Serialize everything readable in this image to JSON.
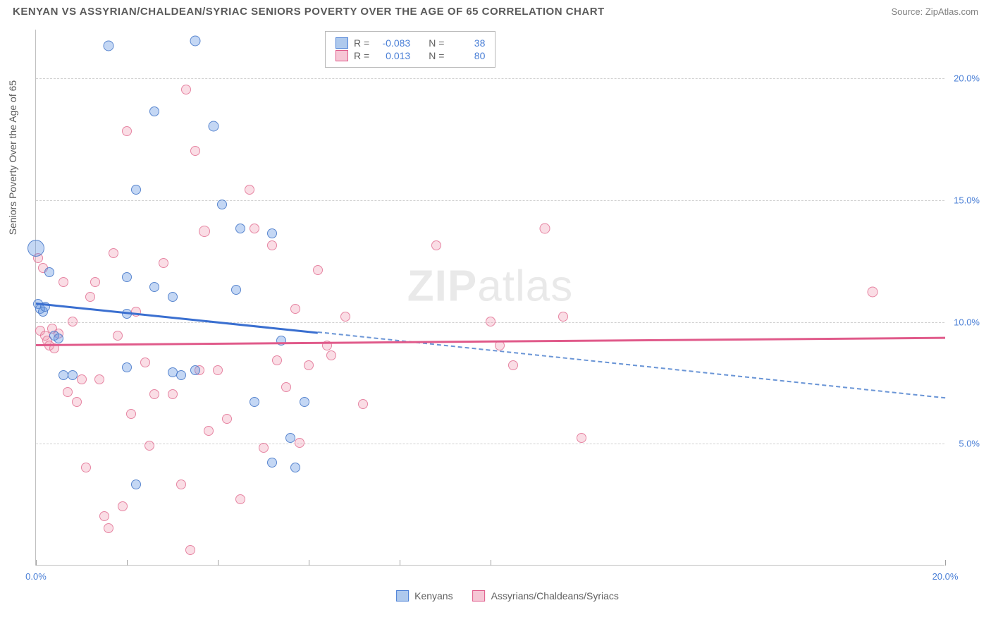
{
  "header": {
    "title": "KENYAN VS ASSYRIAN/CHALDEAN/SYRIAC SENIORS POVERTY OVER THE AGE OF 65 CORRELATION CHART",
    "source": "Source: ZipAtlas.com"
  },
  "chart": {
    "type": "scatter",
    "axis_title_y": "Seniors Poverty Over the Age of 65",
    "xlim": [
      0,
      20
    ],
    "ylim": [
      0,
      22
    ],
    "x_ticks": [
      0,
      2,
      4,
      6,
      8,
      10,
      20
    ],
    "x_tick_labels": {
      "0": "0.0%",
      "20": "20.0%"
    },
    "y_grid": [
      5,
      10,
      15,
      20
    ],
    "y_tick_labels": {
      "5": "5.0%",
      "10": "10.0%",
      "15": "15.0%",
      "20": "20.0%"
    },
    "background_color": "#ffffff",
    "grid_color": "#d0d0d0",
    "watermark": "ZIPatlas",
    "series": {
      "blue": {
        "label": "Kenyans",
        "fill": "rgba(100,150,225,0.38)",
        "stroke": "rgba(70,120,200,0.85)",
        "R": "-0.083",
        "N": "38",
        "reg_line": {
          "x1": 0,
          "y1": 10.8,
          "x2": 6.2,
          "y2": 9.6,
          "x3": 20,
          "y3": 6.9
        },
        "points": [
          [
            0.0,
            13.0,
            20
          ],
          [
            0.05,
            10.7,
            10
          ],
          [
            0.1,
            10.5,
            10
          ],
          [
            0.15,
            10.4,
            10
          ],
          [
            0.2,
            10.6,
            10
          ],
          [
            0.3,
            12.0,
            10
          ],
          [
            0.4,
            9.4,
            10
          ],
          [
            0.5,
            9.3,
            10
          ],
          [
            0.6,
            7.8,
            10
          ],
          [
            0.8,
            7.8,
            10
          ],
          [
            1.6,
            21.3,
            11
          ],
          [
            2.0,
            11.8,
            10
          ],
          [
            2.0,
            10.3,
            10
          ],
          [
            2.0,
            8.1,
            10
          ],
          [
            2.2,
            15.4,
            10
          ],
          [
            2.2,
            3.3,
            10
          ],
          [
            2.6,
            18.6,
            10
          ],
          [
            2.6,
            11.4,
            10
          ],
          [
            3.0,
            11.0,
            10
          ],
          [
            3.0,
            7.9,
            10
          ],
          [
            3.2,
            7.8,
            10
          ],
          [
            3.5,
            8.0,
            10
          ],
          [
            3.5,
            21.5,
            11
          ],
          [
            3.9,
            18.0,
            11
          ],
          [
            4.1,
            14.8,
            10
          ],
          [
            4.4,
            11.3,
            10
          ],
          [
            4.5,
            13.8,
            10
          ],
          [
            4.8,
            6.7,
            10
          ],
          [
            5.2,
            13.6,
            10
          ],
          [
            5.2,
            4.2,
            10
          ],
          [
            5.4,
            9.2,
            10
          ],
          [
            5.6,
            5.2,
            10
          ],
          [
            5.7,
            4.0,
            10
          ],
          [
            5.9,
            6.7,
            10
          ]
        ]
      },
      "pink": {
        "label": "Assyrians/Chaldeans/Syriacs",
        "fill": "rgba(240,150,175,0.32)",
        "stroke": "rgba(225,110,145,0.8)",
        "R": "0.013",
        "N": "80",
        "reg_line": {
          "x1": 0,
          "y1": 9.1,
          "x2": 20,
          "y2": 9.4
        },
        "points": [
          [
            0.05,
            12.6,
            10
          ],
          [
            0.1,
            9.6,
            10
          ],
          [
            0.15,
            12.2,
            10
          ],
          [
            0.2,
            9.4,
            10
          ],
          [
            0.25,
            9.2,
            10
          ],
          [
            0.3,
            9.0,
            10
          ],
          [
            0.35,
            9.7,
            10
          ],
          [
            0.4,
            8.9,
            10
          ],
          [
            0.5,
            9.5,
            10
          ],
          [
            0.6,
            11.6,
            10
          ],
          [
            0.7,
            7.1,
            10
          ],
          [
            0.8,
            10.0,
            10
          ],
          [
            0.9,
            6.7,
            10
          ],
          [
            1.0,
            7.6,
            10
          ],
          [
            1.1,
            4.0,
            10
          ],
          [
            1.2,
            11.0,
            10
          ],
          [
            1.3,
            11.6,
            10
          ],
          [
            1.4,
            7.6,
            10
          ],
          [
            1.5,
            2.0,
            10
          ],
          [
            1.6,
            1.5,
            10
          ],
          [
            1.7,
            12.8,
            10
          ],
          [
            1.8,
            9.4,
            10
          ],
          [
            1.9,
            2.4,
            10
          ],
          [
            2.0,
            17.8,
            10
          ],
          [
            2.1,
            6.2,
            10
          ],
          [
            2.2,
            10.4,
            10
          ],
          [
            2.4,
            8.3,
            10
          ],
          [
            2.5,
            4.9,
            10
          ],
          [
            2.6,
            7.0,
            10
          ],
          [
            2.8,
            12.4,
            10
          ],
          [
            3.0,
            7.0,
            10
          ],
          [
            3.2,
            3.3,
            10
          ],
          [
            3.3,
            19.5,
            10
          ],
          [
            3.4,
            0.6,
            10
          ],
          [
            3.5,
            17.0,
            10
          ],
          [
            3.6,
            8.0,
            10
          ],
          [
            3.7,
            13.7,
            12
          ],
          [
            3.8,
            5.5,
            10
          ],
          [
            4.0,
            8.0,
            10
          ],
          [
            4.2,
            6.0,
            10
          ],
          [
            4.5,
            2.7,
            10
          ],
          [
            4.7,
            15.4,
            10
          ],
          [
            4.8,
            13.8,
            10
          ],
          [
            5.0,
            4.8,
            10
          ],
          [
            5.2,
            13.1,
            10
          ],
          [
            5.3,
            8.4,
            10
          ],
          [
            5.5,
            7.3,
            10
          ],
          [
            5.7,
            10.5,
            10
          ],
          [
            5.8,
            5.0,
            10
          ],
          [
            6.0,
            8.2,
            10
          ],
          [
            6.2,
            12.1,
            10
          ],
          [
            6.4,
            9.0,
            10
          ],
          [
            6.5,
            8.6,
            10
          ],
          [
            6.8,
            10.2,
            10
          ],
          [
            7.2,
            6.6,
            10
          ],
          [
            8.8,
            13.1,
            10
          ],
          [
            10.0,
            10.0,
            10
          ],
          [
            10.2,
            9.0,
            10
          ],
          [
            10.5,
            8.2,
            10
          ],
          [
            11.2,
            13.8,
            11
          ],
          [
            11.6,
            10.2,
            10
          ],
          [
            12.0,
            5.2,
            10
          ],
          [
            18.4,
            11.2,
            11
          ]
        ]
      }
    }
  },
  "legend": {
    "r_label": "R =",
    "n_label": "N ="
  }
}
